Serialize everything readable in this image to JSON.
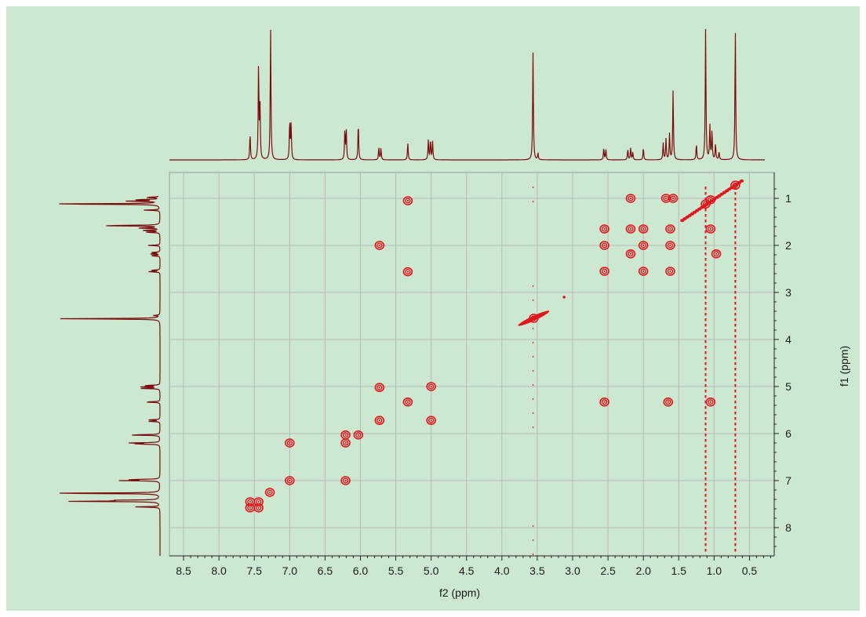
{
  "chart_data": {
    "type": "heatmap",
    "subtype": "2D COSY NMR contour plot with 1D projection spectra",
    "title": "",
    "xlabel": "f2 (ppm)",
    "ylabel": "f1 (ppm)",
    "x_axis_reversed": true,
    "y_axis_reversed": true,
    "xlim": [
      8.7,
      0.15
    ],
    "ylim": [
      0.45,
      8.6
    ],
    "x_ticks": [
      8.5,
      8.0,
      7.5,
      7.0,
      6.5,
      6.0,
      5.5,
      5.0,
      4.5,
      4.0,
      3.5,
      3.0,
      2.5,
      2.0,
      1.5,
      1.0,
      0.5
    ],
    "x_tick_labels": [
      "8.5",
      "8.0",
      "7.5",
      "7.0",
      "6.5",
      "6.0",
      "5.5",
      "5.0",
      "4.5",
      "4.0",
      "3.5",
      "3.0",
      "2.5",
      "2.0",
      "1.5",
      "1.0",
      "0.5"
    ],
    "y_ticks": [
      1,
      2,
      3,
      4,
      5,
      6,
      7,
      8
    ],
    "y_tick_labels": [
      "1",
      "2",
      "3",
      "4",
      "5",
      "6",
      "7",
      "8"
    ],
    "grid": true,
    "colors": {
      "background": "#cde8d1",
      "plot_background": "#cde8d1",
      "grid": "#b9b9b9",
      "contour": "#e0161b",
      "spectrum": "#7a0c0c",
      "axis": "#222222"
    },
    "projection_peaks": [
      {
        "ppm": 7.56,
        "height": 0.2
      },
      {
        "ppm": 7.44,
        "height": 0.72
      },
      {
        "ppm": 7.42,
        "height": 0.4
      },
      {
        "ppm": 7.27,
        "height": 1.0
      },
      {
        "ppm": 7.0,
        "height": 0.29
      },
      {
        "ppm": 6.98,
        "height": 0.27
      },
      {
        "ppm": 6.22,
        "height": 0.22
      },
      {
        "ppm": 6.2,
        "height": 0.22
      },
      {
        "ppm": 6.03,
        "height": 0.28
      },
      {
        "ppm": 5.74,
        "height": 0.09
      },
      {
        "ppm": 5.71,
        "height": 0.09
      },
      {
        "ppm": 5.33,
        "height": 0.13
      },
      {
        "ppm": 5.04,
        "height": 0.15
      },
      {
        "ppm": 5.01,
        "height": 0.15
      },
      {
        "ppm": 4.98,
        "height": 0.14
      },
      {
        "ppm": 3.56,
        "height": 0.82
      },
      {
        "ppm": 3.49,
        "height": 0.05
      },
      {
        "ppm": 2.56,
        "height": 0.09
      },
      {
        "ppm": 2.53,
        "height": 0.08
      },
      {
        "ppm": 2.22,
        "height": 0.08
      },
      {
        "ppm": 2.18,
        "height": 0.09
      },
      {
        "ppm": 2.15,
        "height": 0.06
      },
      {
        "ppm": 2.0,
        "height": 0.09
      },
      {
        "ppm": 1.72,
        "height": 0.13
      },
      {
        "ppm": 1.68,
        "height": 0.16
      },
      {
        "ppm": 1.63,
        "height": 0.2
      },
      {
        "ppm": 1.58,
        "height": 0.53
      },
      {
        "ppm": 1.25,
        "height": 0.12
      },
      {
        "ppm": 1.12,
        "height": 1.0
      },
      {
        "ppm": 1.06,
        "height": 0.26
      },
      {
        "ppm": 1.03,
        "height": 0.22
      },
      {
        "ppm": 0.98,
        "height": 0.12
      },
      {
        "ppm": 0.93,
        "height": 0.06
      },
      {
        "ppm": 0.7,
        "height": 1.0
      }
    ],
    "cross_peaks": [
      {
        "x": 7.56,
        "y": 7.45
      },
      {
        "x": 7.56,
        "y": 7.58
      },
      {
        "x": 7.44,
        "y": 7.45
      },
      {
        "x": 7.44,
        "y": 7.58
      },
      {
        "x": 7.28,
        "y": 7.25
      },
      {
        "x": 7.0,
        "y": 7.0
      },
      {
        "x": 7.0,
        "y": 6.2
      },
      {
        "x": 6.21,
        "y": 6.2
      },
      {
        "x": 6.21,
        "y": 7.0
      },
      {
        "x": 6.21,
        "y": 6.03
      },
      {
        "x": 6.03,
        "y": 6.03
      },
      {
        "x": 5.73,
        "y": 5.72
      },
      {
        "x": 5.73,
        "y": 5.02
      },
      {
        "x": 5.73,
        "y": 2.0
      },
      {
        "x": 5.33,
        "y": 5.33
      },
      {
        "x": 5.33,
        "y": 1.05
      },
      {
        "x": 5.33,
        "y": 2.56
      },
      {
        "x": 5.0,
        "y": 5.0
      },
      {
        "x": 5.0,
        "y": 5.72
      },
      {
        "x": 3.55,
        "y": 3.55
      },
      {
        "x": 2.55,
        "y": 2.55
      },
      {
        "x": 2.55,
        "y": 1.65
      },
      {
        "x": 2.55,
        "y": 2.0
      },
      {
        "x": 2.55,
        "y": 5.33
      },
      {
        "x": 2.18,
        "y": 2.18
      },
      {
        "x": 2.18,
        "y": 1.0
      },
      {
        "x": 2.18,
        "y": 1.65
      },
      {
        "x": 2.0,
        "y": 2.0
      },
      {
        "x": 2.0,
        "y": 1.65
      },
      {
        "x": 2.0,
        "y": 2.55
      },
      {
        "x": 1.68,
        "y": 1.0
      },
      {
        "x": 1.62,
        "y": 1.65
      },
      {
        "x": 1.62,
        "y": 2.0
      },
      {
        "x": 1.62,
        "y": 2.55
      },
      {
        "x": 1.58,
        "y": 1.0
      },
      {
        "x": 1.65,
        "y": 5.33
      },
      {
        "x": 1.12,
        "y": 1.12
      },
      {
        "x": 1.05,
        "y": 1.03
      },
      {
        "x": 1.05,
        "y": 1.65
      },
      {
        "x": 1.05,
        "y": 5.33
      },
      {
        "x": 0.97,
        "y": 2.18
      },
      {
        "x": 0.7,
        "y": 0.72
      }
    ],
    "t1_noise_columns": [
      3.56,
      1.12,
      0.7
    ]
  }
}
